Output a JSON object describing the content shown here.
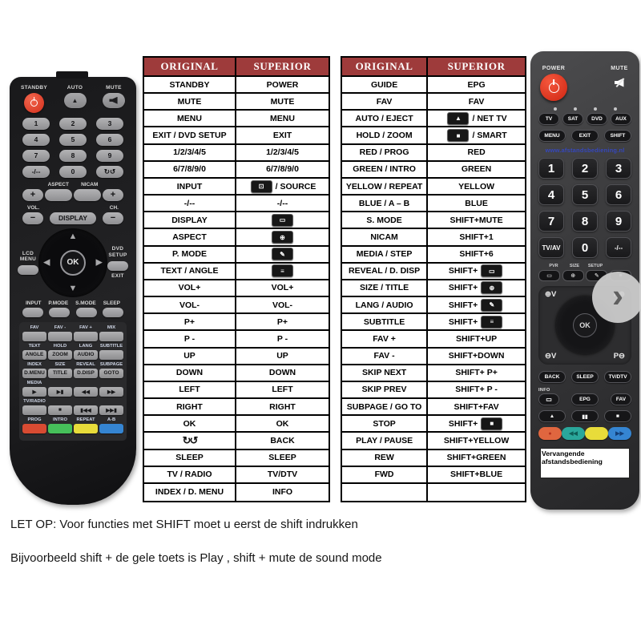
{
  "colors": {
    "table_header_bg": "#9e3b3b",
    "table_header_text": "#ffffff",
    "power_button_red": "#d42f1c",
    "red_button": "#d84b32",
    "green_button": "#46c05a",
    "teal_button": "#2aa79b",
    "yellow_button": "#e8dc3a",
    "blue_button": "#3585d2",
    "watermark_blue": "#3547bd"
  },
  "icons": {
    "source-key": {
      "glyph": "⊡",
      "style": "key"
    },
    "display-key": {
      "glyph": "▭",
      "style": "key"
    },
    "aspect-key": {
      "glyph": "⊕",
      "style": "key"
    },
    "picture-mode-key": {
      "glyph": "✎",
      "style": "key"
    },
    "subtitle-key": {
      "glyph": "≡",
      "style": "key"
    },
    "up-key": {
      "glyph": "▲",
      "style": "key"
    },
    "stop-key": {
      "glyph": "■",
      "style": "key"
    },
    "repeat-loop": {
      "glyph": "↻↺",
      "style": "plain"
    }
  },
  "tables": [
    {
      "headers": [
        "ORIGINAL",
        "SUPERIOR"
      ],
      "rows": [
        [
          {
            "text": "STANDBY"
          },
          {
            "text": "POWER"
          }
        ],
        [
          {
            "text": "MUTE"
          },
          {
            "text": "MUTE"
          }
        ],
        [
          {
            "text": "MENU"
          },
          {
            "text": "MENU"
          }
        ],
        [
          {
            "text": "EXIT / DVD SETUP"
          },
          {
            "text": "EXIT"
          }
        ],
        [
          {
            "text": "1/2/3/4/5"
          },
          {
            "text": "1/2/3/4/5"
          }
        ],
        [
          {
            "text": "6/7/8/9/0"
          },
          {
            "text": "6/7/8/9/0"
          }
        ],
        [
          {
            "text": "INPUT"
          },
          {
            "icon": "source-key",
            "icon_pos": "before",
            "text": "/ SOURCE"
          }
        ],
        [
          {
            "text": "-/--"
          },
          {
            "text": "-/--"
          }
        ],
        [
          {
            "text": "DISPLAY"
          },
          {
            "icon": "display-key",
            "icon_pos": "before",
            "text": ""
          }
        ],
        [
          {
            "text": "ASPECT"
          },
          {
            "icon": "aspect-key",
            "icon_pos": "before",
            "text": ""
          }
        ],
        [
          {
            "text": "P. MODE"
          },
          {
            "icon": "picture-mode-key",
            "icon_pos": "before",
            "text": ""
          }
        ],
        [
          {
            "text": "TEXT / ANGLE"
          },
          {
            "icon": "subtitle-key",
            "icon_pos": "before",
            "text": ""
          }
        ],
        [
          {
            "text": "VOL+"
          },
          {
            "text": "VOL+"
          }
        ],
        [
          {
            "text": "VOL-"
          },
          {
            "text": "VOL-"
          }
        ],
        [
          {
            "text": "P+"
          },
          {
            "text": "P+"
          }
        ],
        [
          {
            "text": "P -"
          },
          {
            "text": "P -"
          }
        ],
        [
          {
            "text": "UP"
          },
          {
            "text": "UP"
          }
        ],
        [
          {
            "text": "DOWN"
          },
          {
            "text": "DOWN"
          }
        ],
        [
          {
            "text": "LEFT"
          },
          {
            "text": "LEFT"
          }
        ],
        [
          {
            "text": "RIGHT"
          },
          {
            "text": "RIGHT"
          }
        ],
        [
          {
            "text": "OK"
          },
          {
            "text": "OK"
          }
        ],
        [
          {
            "icon": "repeat-loop",
            "icon_pos": "before",
            "text": ""
          },
          {
            "text": "BACK"
          }
        ],
        [
          {
            "text": "SLEEP"
          },
          {
            "text": "SLEEP"
          }
        ],
        [
          {
            "text": "TV / RADIO"
          },
          {
            "text": "TV/DTV"
          }
        ],
        [
          {
            "text": "INDEX / D. MENU"
          },
          {
            "text": "INFO"
          }
        ]
      ]
    },
    {
      "headers": [
        "ORIGINAL",
        "SUPERIOR"
      ],
      "rows": [
        [
          {
            "text": "GUIDE"
          },
          {
            "text": "EPG"
          }
        ],
        [
          {
            "text": "FAV"
          },
          {
            "text": "FAV"
          }
        ],
        [
          {
            "text": "AUTO / EJECT"
          },
          {
            "icon": "up-key",
            "icon_pos": "before",
            "text": "/ NET TV"
          }
        ],
        [
          {
            "text": "HOLD / ZOOM"
          },
          {
            "icon": "stop-key",
            "icon_pos": "before",
            "text": "/ SMART"
          }
        ],
        [
          {
            "text": "RED / PROG"
          },
          {
            "text": "RED"
          }
        ],
        [
          {
            "text": "GREEN / INTRO"
          },
          {
            "text": "GREEN"
          }
        ],
        [
          {
            "text": "YELLOW / REPEAT"
          },
          {
            "text": "YELLOW"
          }
        ],
        [
          {
            "text": "BLUE / A – B"
          },
          {
            "text": "BLUE"
          }
        ],
        [
          {
            "text": "S. MODE"
          },
          {
            "text": "SHIFT+MUTE"
          }
        ],
        [
          {
            "text": "NICAM"
          },
          {
            "text": "SHIFT+1"
          }
        ],
        [
          {
            "text": "MEDIA / STEP"
          },
          {
            "text": "SHIFT+6"
          }
        ],
        [
          {
            "text": "REVEAL / D. DISP"
          },
          {
            "text": "SHIFT+",
            "icon": "display-key",
            "icon_pos": "after"
          }
        ],
        [
          {
            "text": "SIZE / TITLE"
          },
          {
            "text": "SHIFT+",
            "icon": "aspect-key",
            "icon_pos": "after"
          }
        ],
        [
          {
            "text": "LANG / AUDIO"
          },
          {
            "text": "SHIFT+",
            "icon": "picture-mode-key",
            "icon_pos": "after"
          }
        ],
        [
          {
            "text": "SUBTITLE"
          },
          {
            "text": "SHIFT+",
            "icon": "subtitle-key",
            "icon_pos": "after"
          }
        ],
        [
          {
            "text": "FAV +"
          },
          {
            "text": "SHIFT+UP"
          }
        ],
        [
          {
            "text": "FAV -"
          },
          {
            "text": "SHIFT+DOWN"
          }
        ],
        [
          {
            "text": "SKIP NEXT"
          },
          {
            "text": "SHIFT+ P+"
          }
        ],
        [
          {
            "text": "SKIP PREV"
          },
          {
            "text": "SHIFT+ P -"
          }
        ],
        [
          {
            "text": "SUBPAGE / GO TO"
          },
          {
            "text": "SHIFT+FAV"
          }
        ],
        [
          {
            "text": "STOP"
          },
          {
            "text": "SHIFT+",
            "icon": "stop-key",
            "icon_pos": "after"
          }
        ],
        [
          {
            "text": "PLAY / PAUSE"
          },
          {
            "text": "SHIFT+YELLOW"
          }
        ],
        [
          {
            "text": "REW"
          },
          {
            "text": "SHIFT+GREEN"
          }
        ],
        [
          {
            "text": "FWD"
          },
          {
            "text": "SHIFT+BLUE"
          }
        ],
        [
          {
            "text": ""
          },
          {
            "text": ""
          }
        ]
      ]
    }
  ],
  "notes": {
    "line1": "LET OP: Voor functies met SHIFT moet u eerst de shift indrukken",
    "line2": "Bijvoorbeeld shift + de gele toets is Play , shift + mute de sound mode"
  },
  "carousel": {
    "next_glyph": "›"
  },
  "left_remote": {
    "standby_label": "STANDBY",
    "auto_label": "AUTO",
    "auto_glyph": "▲",
    "mute_label": "MUTE",
    "digit_rows": [
      [
        "1",
        "2",
        "3"
      ],
      [
        "4",
        "5",
        "6"
      ],
      [
        "7",
        "8",
        "9"
      ],
      [
        "-/--",
        "0",
        "↻↺"
      ]
    ],
    "aspect_label": "ASPECT",
    "nicam_label": "NICAM",
    "plus": "+",
    "minus": "−",
    "vol_label": "VOL.",
    "ch_label": "CH.",
    "display_label": "DISPLAY",
    "lcd_menu_label": "LCD\nMENU",
    "dvd_setup_label": "DVD\nSETUP",
    "exit_label": "EXIT",
    "ok_label": "OK",
    "mode_labels": [
      "INPUT",
      "P.MODE",
      "S.MODE",
      "SLEEP"
    ],
    "function_rows": [
      {
        "labels": [
          "FAV",
          "FAV -",
          "FAV +",
          "MIX"
        ],
        "keys": [
          "",
          "",
          "",
          ""
        ]
      },
      {
        "labels": [
          "TEXT",
          "HOLD",
          "LANG",
          "SUBTITLE"
        ],
        "keys": [
          "ANGLE",
          "ZOOM",
          "AUDIO",
          ""
        ]
      },
      {
        "labels": [
          "INDEX",
          "SIZE",
          "REVEAL",
          "SUBPAGE"
        ],
        "keys": [
          "D.MENU",
          "TITLE",
          "D.DISP",
          "GOTO"
        ]
      },
      {
        "labels": [
          "MEDIA",
          "",
          "",
          ""
        ],
        "keys": [
          "▶",
          "▶▮",
          "◀◀",
          "▶▶"
        ]
      },
      {
        "labels": [
          "TV/RADIO",
          "",
          "",
          ""
        ],
        "keys": [
          "",
          "■",
          "▮◀◀",
          "▶▶▮"
        ]
      },
      {
        "labels": [
          "PROG",
          "INTRO",
          "REPEAT",
          "A-B"
        ],
        "keys": [
          "",
          "",
          "",
          ""
        ],
        "colors": [
          "#d84b32",
          "#46c05a",
          "#e8dc3a",
          "#3585d2"
        ]
      }
    ]
  },
  "right_remote": {
    "power_label": "POWER",
    "mute_label": "MUTE",
    "device_buttons": [
      "TV",
      "SAT",
      "DVD",
      "AUX"
    ],
    "menu_buttons": [
      "MENU",
      "EXIT",
      "SHIFT"
    ],
    "watermark": "www.afstandsbediening.nl",
    "digit_rows": [
      [
        "1",
        "2",
        "3"
      ],
      [
        "4",
        "5",
        "6"
      ],
      [
        "7",
        "8",
        "9"
      ]
    ],
    "extra_digit_row": [
      "TV/AV",
      "0",
      "-/--"
    ],
    "small_key_labels": [
      "PVR",
      "SIZE",
      "SETUP",
      ""
    ],
    "small_keys": [
      "display-key",
      "aspect-key",
      "picture-mode-key",
      "subtitle-key"
    ],
    "nav": {
      "tl": "⊕V",
      "tr": "P⊕",
      "bl": "⊖V",
      "br": "P⊖"
    },
    "ok_label": "OK",
    "back_label": "BACK",
    "sleep_label": "SLEEP",
    "tvdtv_label": "TV/DTV",
    "info_label": "INFO",
    "info_key_glyph": "▭",
    "epg_label": "EPG",
    "fav_label": "FAV",
    "transport_buttons": [
      "▲",
      "▮▮",
      "■"
    ],
    "color_buttons": [
      {
        "glyph": "●",
        "bg": "#e0663f",
        "fg": "#b5301c"
      },
      {
        "glyph": "◀◀",
        "bg": "#2aa79b",
        "fg": "#0e5e57"
      },
      {
        "glyph": "",
        "bg": "#e8dc3a",
        "fg": "#8a832a"
      },
      {
        "glyph": "▶▶",
        "bg": "#3585d2",
        "fg": "#143f77"
      }
    ],
    "label_plate": "Vervangende afstandsbediening"
  }
}
